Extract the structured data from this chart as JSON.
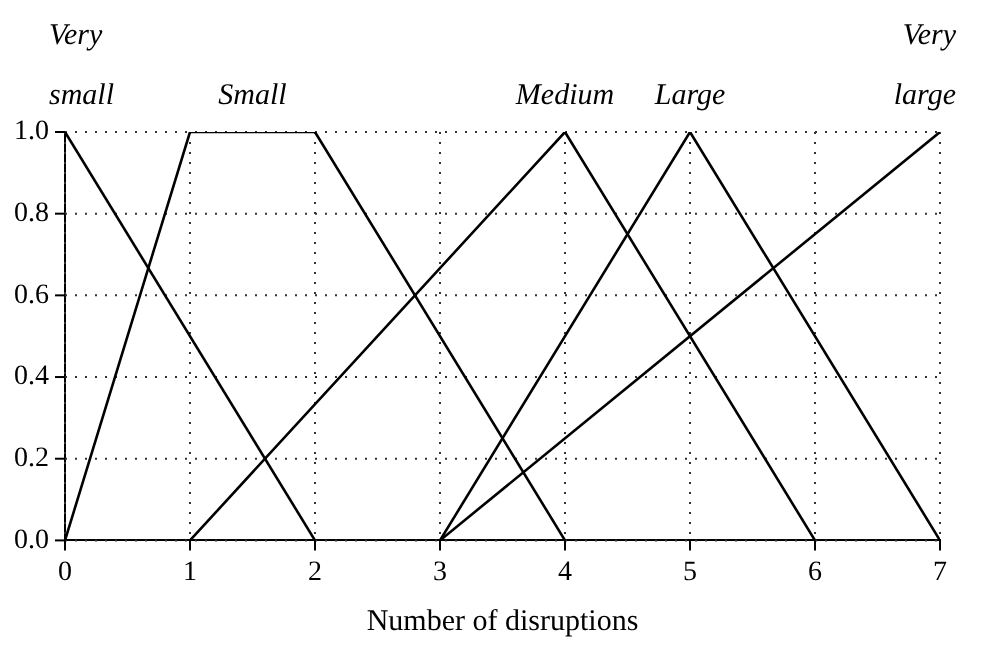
{
  "chart_data": {
    "type": "line",
    "xlabel": "Number of disruptions",
    "xlim": [
      0,
      7
    ],
    "xticks": [
      0,
      1,
      2,
      3,
      4,
      5,
      6,
      7
    ],
    "ylim": [
      0,
      1
    ],
    "yticks": [
      {
        "value": 0,
        "label": "0.0"
      },
      {
        "value": 0.2,
        "label": "0.2"
      },
      {
        "value": 0.4,
        "label": "0.4"
      },
      {
        "value": 0.6,
        "label": "0.6"
      },
      {
        "value": 0.8,
        "label": "0.8"
      },
      {
        "value": 1,
        "label": "1.0"
      }
    ],
    "grid": true,
    "legend": false,
    "marker": "none",
    "line_style": "solid",
    "series": [
      {
        "name": "Very small",
        "color": "#000000",
        "x": [
          0,
          2
        ],
        "values": [
          1,
          0
        ]
      },
      {
        "name": "Small",
        "color": "#000000",
        "x": [
          0,
          1,
          2,
          4
        ],
        "values": [
          0,
          1,
          1,
          0
        ]
      },
      {
        "name": "Medium",
        "color": "#000000",
        "x": [
          1,
          4,
          6
        ],
        "values": [
          0,
          1,
          0
        ]
      },
      {
        "name": "Large",
        "color": "#000000",
        "x": [
          3,
          5,
          7
        ],
        "values": [
          0,
          1,
          0
        ]
      },
      {
        "name": "Very large",
        "color": "#000000",
        "x": [
          3,
          7
        ],
        "values": [
          0,
          1
        ]
      }
    ]
  }
}
